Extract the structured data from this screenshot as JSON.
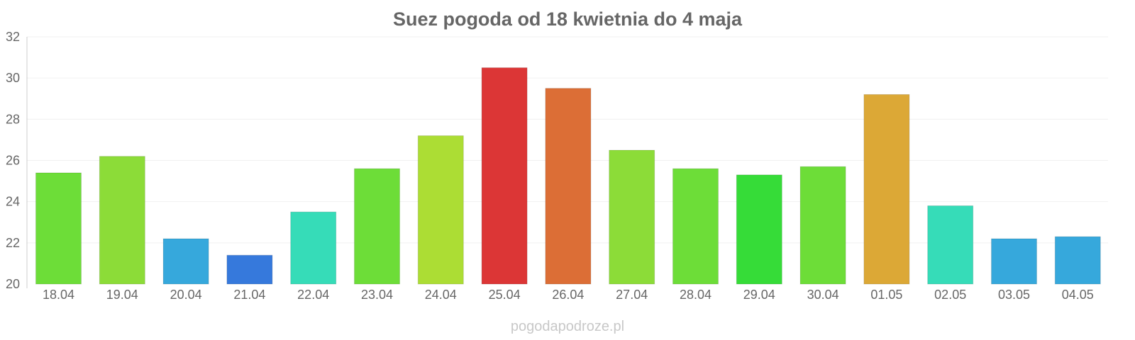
{
  "chart_data": {
    "type": "bar",
    "title": "Suez pogoda od 18 kwietnia do 4 maja",
    "xlabel": "",
    "ylabel": "",
    "ylim": [
      20,
      32
    ],
    "yticks": [
      20,
      22,
      24,
      26,
      28,
      30,
      32
    ],
    "grid": true,
    "categories": [
      "18.04",
      "19.04",
      "20.04",
      "21.04",
      "22.04",
      "23.04",
      "24.04",
      "25.04",
      "26.04",
      "27.04",
      "28.04",
      "29.04",
      "30.04",
      "01.05",
      "02.05",
      "03.05",
      "04.05"
    ],
    "values": [
      25.4,
      26.2,
      22.2,
      21.4,
      23.5,
      25.6,
      27.2,
      30.5,
      29.5,
      26.5,
      25.6,
      25.3,
      25.7,
      29.2,
      23.8,
      22.2,
      22.3
    ],
    "colors": [
      "#6ddd38",
      "#8cdc38",
      "#36a8dc",
      "#3679dc",
      "#36dcb8",
      "#6ddd38",
      "#acdd34",
      "#dc3636",
      "#dc6e36",
      "#8cdc38",
      "#6ddd38",
      "#36dc38",
      "#6ddd38",
      "#dca836",
      "#36dcb8",
      "#36a8dc",
      "#36a8dc"
    ]
  },
  "watermark": "pogodapodroze.pl"
}
